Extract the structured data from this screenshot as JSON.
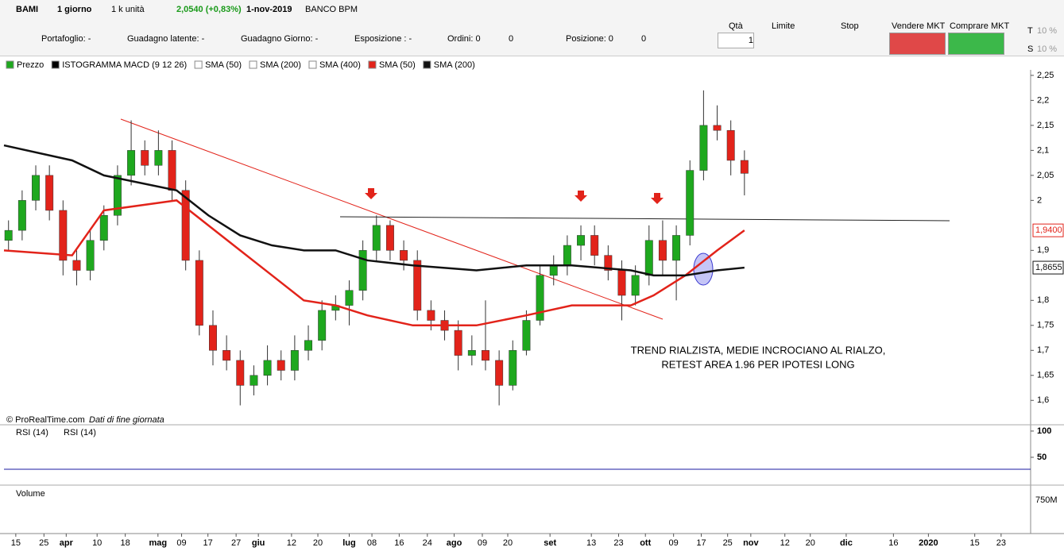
{
  "toolbar": {
    "symbol": "BAMI",
    "period": "1 giorno",
    "units": "1 k unità",
    "quote": "2,0540 (+0,83%)",
    "date": "1-nov-2019",
    "name": "BANCO BPM",
    "portfolio": "Portafoglio: -",
    "latent": "Guadagno latente: -",
    "daygain": "Guadagno Giorno: -",
    "exposure": "Esposizione : -",
    "orders": "Ordini: 0",
    "orders2": "0",
    "position": "Posizione: 0",
    "position2": "0",
    "qty_label": "Qtà",
    "qty": "1",
    "limit": "Limite",
    "stop": "Stop",
    "sell": "Vendere MKT",
    "buy": "Comprare MKT",
    "t": "T",
    "t_pct": "10 %",
    "s": "S",
    "s_pct": "10 %"
  },
  "indicators": [
    "Prezzo",
    "ISTOGRAMMA MACD (9 12 26)",
    "SMA (50)",
    "SMA (200)",
    "SMA (400)"
  ],
  "footer": {
    "copyright": "© ProRealTime.com",
    "note": "Dati di fine giornata"
  },
  "annotation": [
    "TREND RIALZISTA, MEDIE INCROCIANO AL RIALZO,",
    "RETEST AREA 1.96 PER IPOTESI LONG"
  ],
  "rsi": {
    "legend": [
      "RSI (14)",
      "RSI (14)"
    ],
    "ylim": [
      0,
      115
    ],
    "yticks": [
      100,
      50
    ]
  },
  "volume": {
    "legend": "Volume",
    "ytick": {
      "value": 750000000,
      "label": "750M"
    }
  },
  "chart_data": {
    "type": "candlestick",
    "up_color": "#1ea81e",
    "down_color": "#e2231a",
    "x": [
      1,
      4,
      7,
      10,
      13,
      16,
      19,
      22,
      25,
      28,
      31,
      34,
      37,
      40,
      43,
      46,
      49,
      52,
      55,
      58,
      61,
      64,
      67,
      70,
      73,
      76,
      79,
      82,
      85,
      88,
      91,
      94,
      97,
      100,
      103,
      106,
      109,
      112,
      115,
      118,
      121,
      124,
      127,
      130,
      133,
      136,
      139,
      142,
      145,
      148,
      151,
      154,
      157,
      160,
      163
    ],
    "open": [
      1.92,
      1.94,
      2.0,
      2.05,
      1.98,
      1.88,
      1.86,
      1.92,
      1.97,
      2.05,
      2.1,
      2.07,
      2.1,
      2.02,
      1.88,
      1.75,
      1.7,
      1.68,
      1.63,
      1.65,
      1.68,
      1.66,
      1.7,
      1.72,
      1.78,
      1.79,
      1.82,
      1.9,
      1.95,
      1.9,
      1.88,
      1.78,
      1.76,
      1.74,
      1.69,
      1.7,
      1.68,
      1.63,
      1.7,
      1.76,
      1.85,
      1.87,
      1.91,
      1.93,
      1.89,
      1.86,
      1.81,
      1.85,
      1.92,
      1.88,
      1.93,
      2.06,
      2.15,
      2.14,
      2.08
    ],
    "high": [
      1.96,
      2.02,
      2.07,
      2.07,
      2.0,
      1.9,
      1.94,
      1.99,
      2.07,
      2.16,
      2.12,
      2.14,
      2.12,
      2.04,
      1.9,
      1.78,
      1.73,
      1.7,
      1.67,
      1.71,
      1.7,
      1.73,
      1.75,
      1.8,
      1.81,
      1.84,
      1.92,
      1.97,
      1.96,
      1.92,
      1.9,
      1.8,
      1.78,
      1.76,
      1.73,
      1.8,
      1.7,
      1.72,
      1.78,
      1.87,
      1.89,
      1.93,
      1.95,
      1.95,
      1.91,
      1.88,
      1.87,
      1.95,
      1.96,
      1.95,
      2.08,
      2.22,
      2.19,
      2.16,
      2.1
    ],
    "low": [
      1.9,
      1.92,
      1.98,
      1.96,
      1.85,
      1.83,
      1.84,
      1.9,
      1.95,
      2.03,
      2.05,
      2.05,
      2.0,
      1.86,
      1.73,
      1.67,
      1.66,
      1.59,
      1.61,
      1.63,
      1.64,
      1.64,
      1.68,
      1.7,
      1.76,
      1.75,
      1.8,
      1.88,
      1.88,
      1.86,
      1.76,
      1.74,
      1.72,
      1.66,
      1.67,
      1.66,
      1.59,
      1.62,
      1.69,
      1.75,
      1.83,
      1.85,
      1.88,
      1.87,
      1.84,
      1.76,
      1.79,
      1.83,
      1.85,
      1.8,
      1.91,
      2.04,
      2.12,
      2.05,
      2.01
    ],
    "close": [
      1.94,
      2.0,
      2.05,
      1.98,
      1.88,
      1.86,
      1.92,
      1.97,
      2.05,
      2.1,
      2.07,
      2.1,
      2.02,
      1.88,
      1.75,
      1.7,
      1.68,
      1.63,
      1.65,
      1.68,
      1.66,
      1.7,
      1.72,
      1.78,
      1.79,
      1.82,
      1.9,
      1.95,
      1.9,
      1.88,
      1.78,
      1.76,
      1.74,
      1.69,
      1.7,
      1.68,
      1.63,
      1.7,
      1.76,
      1.85,
      1.87,
      1.91,
      1.93,
      1.89,
      1.86,
      1.81,
      1.85,
      1.92,
      1.88,
      1.93,
      2.06,
      2.15,
      2.14,
      2.08,
      2.054
    ],
    "series": [
      {
        "name": "SMA (50)",
        "color": "#e2231a",
        "x": [
          0,
          15,
          22,
          38,
          45,
          52,
          59,
          66,
          73,
          80,
          90,
          104,
          115,
          125,
          138,
          143,
          150,
          157,
          163
        ],
        "values": [
          1.9,
          1.89,
          1.98,
          2.0,
          1.95,
          1.9,
          1.85,
          1.8,
          1.79,
          1.77,
          1.75,
          1.75,
          1.77,
          1.79,
          1.79,
          1.81,
          1.85,
          1.9,
          1.94
        ],
        "last_label": "1,9400"
      },
      {
        "name": "SMA (200)",
        "color": "#111111",
        "x": [
          0,
          15,
          22,
          38,
          45,
          52,
          59,
          66,
          73,
          80,
          90,
          104,
          115,
          125,
          138,
          143,
          150,
          157,
          163
        ],
        "values": [
          2.11,
          2.08,
          2.05,
          2.02,
          1.97,
          1.93,
          1.91,
          1.9,
          1.9,
          1.88,
          1.87,
          1.86,
          1.87,
          1.87,
          1.86,
          1.85,
          1.85,
          1.86,
          1.8655
        ],
        "last_label": "1,8655"
      }
    ],
    "xlim": [
      0,
      226
    ],
    "ylim": [
      1.575,
      2.261
    ],
    "yticks": [
      {
        "value": 2.25,
        "label": "2,25"
      },
      {
        "value": 2.2,
        "label": "2,2"
      },
      {
        "value": 2.15,
        "label": "2,15"
      },
      {
        "value": 2.1,
        "label": "2,1"
      },
      {
        "value": 2.05,
        "label": "2,05"
      },
      2,
      {
        "value": 1.9,
        "label": "1,9"
      },
      {
        "value": 1.8,
        "label": "1,8"
      },
      {
        "value": 1.75,
        "label": "1,75"
      },
      {
        "value": 1.7,
        "label": "1,7"
      },
      {
        "value": 1.65,
        "label": "1,65"
      },
      {
        "value": 1.6,
        "label": "1,6"
      }
    ],
    "xticks": [
      {
        "value": 2.6,
        "label": "15"
      },
      {
        "value": 8.8,
        "label": "25"
      },
      {
        "value": 13.7,
        "label": "apr"
      },
      {
        "value": 20.5,
        "label": "10"
      },
      {
        "value": 26.7,
        "label": "18"
      },
      {
        "value": 33.9,
        "label": "mag"
      },
      {
        "value": 39.1,
        "label": "09"
      },
      {
        "value": 44.9,
        "label": "17"
      },
      {
        "value": 51.1,
        "label": "27"
      },
      {
        "value": 56,
        "label": "giu"
      },
      {
        "value": 63.3,
        "label": "12"
      },
      {
        "value": 69.1,
        "label": "20"
      },
      {
        "value": 76,
        "label": "lug"
      },
      {
        "value": 81,
        "label": "08"
      },
      {
        "value": 87,
        "label": "16"
      },
      {
        "value": 93.2,
        "label": "24"
      },
      {
        "value": 99.1,
        "label": "ago"
      },
      {
        "value": 105.3,
        "label": "09"
      },
      {
        "value": 110.9,
        "label": "20"
      },
      {
        "value": 120.2,
        "label": "set"
      },
      {
        "value": 129.3,
        "label": "13"
      },
      {
        "value": 135.3,
        "label": "23"
      },
      {
        "value": 141.2,
        "label": "ott"
      },
      {
        "value": 147.4,
        "label": "09"
      },
      {
        "value": 153.5,
        "label": "17"
      },
      {
        "value": 159.3,
        "label": "25"
      },
      {
        "value": 164.4,
        "label": "nov"
      },
      {
        "value": 171.9,
        "label": "12"
      },
      {
        "value": 177.5,
        "label": "20"
      },
      {
        "value": 185.4,
        "label": "dic"
      },
      {
        "value": 195.8,
        "label": "16"
      },
      {
        "value": 203.5,
        "label": "2020"
      },
      {
        "value": 213.7,
        "label": "15"
      },
      {
        "value": 219.5,
        "label": "23"
      }
    ]
  }
}
